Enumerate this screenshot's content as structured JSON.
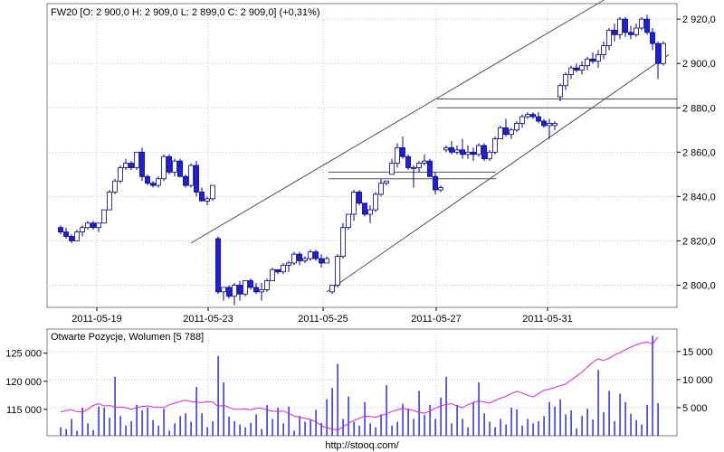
{
  "price_panel": {
    "header": "FW20 [O: 2 900,0  H: 2 909,0  L: 2 899,0  C: 2 909,0] (+0,31%)",
    "y_ticks": [
      "2 800,0",
      "2 820,0",
      "2 840,0",
      "2 860,0",
      "2 880,0",
      "2 900,0",
      "2 920,0"
    ],
    "x_ticks": [
      "2011-05-19",
      "2011-05-23",
      "2011-05-25",
      "2011-05-27",
      "2011-05-31"
    ]
  },
  "volume_panel": {
    "header": "Otwarte Pozycje, Wolumen [5 788]",
    "oi_ticks": [
      "115 000",
      "120 000",
      "125 000"
    ],
    "vol_ticks": [
      "5 000",
      "10 000",
      "15 000"
    ]
  },
  "footer": {
    "url": "http://stooq.com/"
  },
  "colors": {
    "up_fill": "#ffffff",
    "down_fill": "#1e1ee6",
    "candle_line": "#000080",
    "volume_bar": "#1e1ee6",
    "oi_line": "#e020e0",
    "trendline": "#505050",
    "grid": "#c8c8c8"
  },
  "chart_data": [
    {
      "type": "candlestick",
      "title": "FW20 [O: 2 900,0  H: 2 909,0  L: 2 899,0  C: 2 909,0] (+0,31%)",
      "x_labels": [
        "2011-05-19",
        "2011-05-23",
        "2011-05-25",
        "2011-05-27",
        "2011-05-31"
      ],
      "ylim": [
        2790,
        2927
      ],
      "y_ticks": [
        2800,
        2820,
        2840,
        2860,
        2880,
        2900,
        2920
      ],
      "grid": true,
      "candles": [
        [
          2826,
          2827,
          2823,
          2824
        ],
        [
          2824,
          2826,
          2821,
          2822
        ],
        [
          2822,
          2823,
          2819,
          2820
        ],
        [
          2820,
          2825,
          2820,
          2824
        ],
        [
          2824,
          2827,
          2822,
          2826
        ],
        [
          2826,
          2829,
          2825,
          2828
        ],
        [
          2828,
          2829,
          2825,
          2826
        ],
        [
          2826,
          2828,
          2824,
          2828
        ],
        [
          2828,
          2834,
          2828,
          2834
        ],
        [
          2834,
          2843,
          2834,
          2842
        ],
        [
          2842,
          2848,
          2841,
          2847
        ],
        [
          2847,
          2854,
          2846,
          2853
        ],
        [
          2853,
          2857,
          2852,
          2855
        ],
        [
          2855,
          2856,
          2852,
          2853
        ],
        [
          2853,
          2860,
          2852,
          2860
        ],
        [
          2860,
          2862,
          2847,
          2849
        ],
        [
          2849,
          2850,
          2845,
          2846
        ],
        [
          2846,
          2847,
          2844,
          2845
        ],
        [
          2845,
          2849,
          2844,
          2848
        ],
        [
          2848,
          2859,
          2847,
          2858
        ],
        [
          2858,
          2859,
          2850,
          2851
        ],
        [
          2851,
          2857,
          2849,
          2856
        ],
        [
          2856,
          2857,
          2849,
          2849
        ],
        [
          2849,
          2850,
          2844,
          2845
        ],
        [
          2845,
          2855,
          2844,
          2854
        ],
        [
          2854,
          2856,
          2840,
          2842
        ],
        [
          2842,
          2844,
          2838,
          2838
        ],
        [
          2838,
          2840,
          2836,
          2839
        ],
        [
          2839,
          2845,
          2838,
          2845
        ],
        [
          2821,
          2822,
          2796,
          2797
        ],
        [
          2797,
          2799,
          2793,
          2799
        ],
        [
          2799,
          2800,
          2794,
          2795
        ],
        [
          2795,
          2801,
          2791,
          2800
        ],
        [
          2800,
          2802,
          2793,
          2796
        ],
        [
          2796,
          2802,
          2795,
          2802
        ],
        [
          2802,
          2803,
          2798,
          2799
        ],
        [
          2799,
          2801,
          2796,
          2797
        ],
        [
          2797,
          2801,
          2793,
          2798
        ],
        [
          2798,
          2803,
          2797,
          2802
        ],
        [
          2802,
          2808,
          2802,
          2807
        ],
        [
          2807,
          2807,
          2805,
          2806
        ],
        [
          2806,
          2810,
          2805,
          2809
        ],
        [
          2809,
          2811,
          2806,
          2810
        ],
        [
          2810,
          2815,
          2809,
          2814
        ],
        [
          2814,
          2815,
          2809,
          2811
        ],
        [
          2811,
          2813,
          2810,
          2812
        ],
        [
          2812,
          2816,
          2811,
          2815
        ],
        [
          2815,
          2816,
          2811,
          2812
        ],
        [
          2812,
          2814,
          2808,
          2810
        ],
        [
          2810,
          2813,
          2810,
          2812
        ],
        [
          2797,
          2800,
          2796,
          2800
        ],
        [
          2800,
          2814,
          2799,
          2813
        ],
        [
          2813,
          2828,
          2812,
          2826
        ],
        [
          2826,
          2832,
          2825,
          2832
        ],
        [
          2832,
          2843,
          2829,
          2842
        ],
        [
          2842,
          2843,
          2836,
          2837
        ],
        [
          2837,
          2837,
          2831,
          2832
        ],
        [
          2832,
          2836,
          2828,
          2834
        ],
        [
          2834,
          2842,
          2833,
          2841
        ],
        [
          2841,
          2848,
          2840,
          2846
        ],
        [
          2846,
          2847,
          2845,
          2847
        ],
        [
          2850,
          2857,
          2850,
          2855
        ],
        [
          2855,
          2864,
          2853,
          2862
        ],
        [
          2862,
          2867,
          2857,
          2858
        ],
        [
          2858,
          2859,
          2852,
          2853
        ],
        [
          2853,
          2854,
          2844,
          2853
        ],
        [
          2853,
          2856,
          2851,
          2855
        ],
        [
          2855,
          2859,
          2854,
          2856
        ],
        [
          2856,
          2857,
          2850,
          2849
        ],
        [
          2849,
          2851,
          2841,
          2843
        ],
        [
          2843,
          2845,
          2842,
          2844
        ],
        [
          2861,
          2863,
          2860,
          2862
        ],
        [
          2862,
          2865,
          2859,
          2860
        ],
        [
          2860,
          2863,
          2859,
          2861
        ],
        [
          2861,
          2866,
          2857,
          2859
        ],
        [
          2859,
          2863,
          2857,
          2860
        ],
        [
          2860,
          2862,
          2856,
          2859
        ],
        [
          2859,
          2864,
          2858,
          2863
        ],
        [
          2863,
          2864,
          2856,
          2857
        ],
        [
          2857,
          2861,
          2856,
          2860
        ],
        [
          2860,
          2867,
          2859,
          2866
        ],
        [
          2866,
          2872,
          2866,
          2871
        ],
        [
          2871,
          2875,
          2867,
          2868
        ],
        [
          2868,
          2871,
          2866,
          2870
        ],
        [
          2870,
          2874,
          2869,
          2873
        ],
        [
          2873,
          2877,
          2871,
          2876
        ],
        [
          2876,
          2878,
          2875,
          2877
        ],
        [
          2877,
          2878,
          2875,
          2876
        ],
        [
          2876,
          2878,
          2873,
          2874
        ],
        [
          2874,
          2875,
          2871,
          2872
        ],
        [
          2872,
          2875,
          2866,
          2873
        ],
        [
          2872,
          2874,
          2870,
          2873
        ],
        [
          2885,
          2891,
          2883,
          2890
        ],
        [
          2890,
          2896,
          2888,
          2895
        ],
        [
          2895,
          2899,
          2893,
          2898
        ],
        [
          2898,
          2900,
          2896,
          2897
        ],
        [
          2897,
          2901,
          2895,
          2899
        ],
        [
          2899,
          2903,
          2897,
          2902
        ],
        [
          2902,
          2905,
          2900,
          2901
        ],
        [
          2901,
          2906,
          2898,
          2904
        ],
        [
          2904,
          2910,
          2902,
          2908
        ],
        [
          2908,
          2916,
          2906,
          2915
        ],
        [
          2915,
          2918,
          2910,
          2913
        ],
        [
          2913,
          2921,
          2911,
          2920
        ],
        [
          2920,
          2921,
          2912,
          2914
        ],
        [
          2914,
          2917,
          2911,
          2913
        ],
        [
          2913,
          2918,
          2912,
          2916
        ],
        [
          2916,
          2921,
          2915,
          2920
        ],
        [
          2920,
          2922,
          2913,
          2914
        ],
        [
          2914,
          2916,
          2906,
          2909
        ],
        [
          2909,
          2910,
          2893,
          2900
        ],
        [
          2900,
          2910,
          2899,
          2909
        ]
      ],
      "support_levels": [
        2851,
        2848,
        2884,
        2880
      ],
      "trendlines": [
        {
          "from": {
            "x": "2011-05-20",
            "y": 2819
          },
          "to": {
            "x": "2011-06-02",
            "y": 2930
          }
        },
        {
          "from": {
            "x": "2011-05-25",
            "y": 2797
          },
          "to": {
            "x": "2011-06-03",
            "y": 2904
          }
        }
      ]
    },
    {
      "type": "bar+line",
      "title": "Otwarte Pozycje, Wolumen [5 788]",
      "series": [
        {
          "name": "Wolumen",
          "axis": "right",
          "ylim": [
            0,
            19000
          ],
          "values": [
            1500,
            1200,
            3000,
            900,
            5000,
            2200,
            1000,
            5200,
            5000,
            3200,
            10500,
            3500,
            1800,
            2600,
            5500,
            4500,
            5000,
            2800,
            1800,
            4800,
            900,
            2200,
            3500,
            4000,
            2500,
            8700,
            4000,
            1500,
            2600,
            14200,
            9500,
            3400,
            2600,
            2000,
            1500,
            2300,
            3800,
            1200,
            5500,
            3000,
            5000,
            2200,
            5200,
            900,
            3500,
            2500,
            2800,
            4600,
            2300,
            6500,
            8500,
            12800,
            3000,
            7000,
            2500,
            1800,
            6000,
            2200,
            1500,
            3800,
            9000,
            1800,
            2500,
            5700,
            4800,
            3000,
            8000,
            3700,
            5500,
            3000,
            6800,
            10500,
            2200,
            5500,
            3000,
            1500,
            6000,
            9500,
            4000,
            2500,
            1500,
            3000,
            2000,
            5000,
            4700,
            1800,
            3000,
            2200,
            2600,
            3500,
            6000,
            5200,
            6500,
            3800,
            4500,
            1300,
            3500,
            4800,
            2900,
            11700,
            4200,
            8000,
            2600,
            7500,
            6000,
            3900,
            2800,
            2000,
            5500,
            17800,
            5788
          ]
        },
        {
          "name": "Otwarte Pozycje",
          "axis": "left",
          "ylim": [
            110300,
            129300
          ],
          "values": [
            114500,
            114800,
            114900,
            114600,
            114500,
            115000,
            115700,
            116000,
            115600,
            115700,
            115400,
            115400,
            115300,
            115000,
            115300,
            115500,
            115600,
            115400,
            115400,
            115300,
            115800,
            116100,
            116400,
            116600,
            116400,
            116300,
            116200,
            116400,
            116300,
            115500,
            115800,
            115300,
            115000,
            115000,
            115100,
            114900,
            115200,
            115200,
            114900,
            114700,
            114600,
            114700,
            114300,
            113800,
            113600,
            113400,
            113200,
            112800,
            112100,
            111700,
            111500,
            111300,
            111900,
            112500,
            113000,
            113400,
            113800,
            113700,
            113600,
            113900,
            114200,
            114600,
            114900,
            115200,
            115000,
            114800,
            114500,
            114300,
            114700,
            115200,
            115600,
            115900,
            116000,
            115600,
            115300,
            115800,
            116200,
            116500,
            116300,
            116100,
            116600,
            117000,
            117300,
            117800,
            118200,
            117900,
            117500,
            117200,
            117800,
            118400,
            118600,
            118900,
            119200,
            119500,
            120200,
            120900,
            121600,
            122500,
            123400,
            124000,
            123700,
            124100,
            124700,
            125100,
            125600,
            126100,
            126500,
            126800,
            127000,
            126600,
            127900
          ]
        }
      ],
      "left_ticks": [
        115000,
        120000,
        125000
      ],
      "right_ticks": [
        5000,
        10000,
        15000
      ],
      "x_labels": [
        "2011-05-19",
        "2011-05-23",
        "2011-05-25",
        "2011-05-27",
        "2011-05-31"
      ]
    }
  ]
}
